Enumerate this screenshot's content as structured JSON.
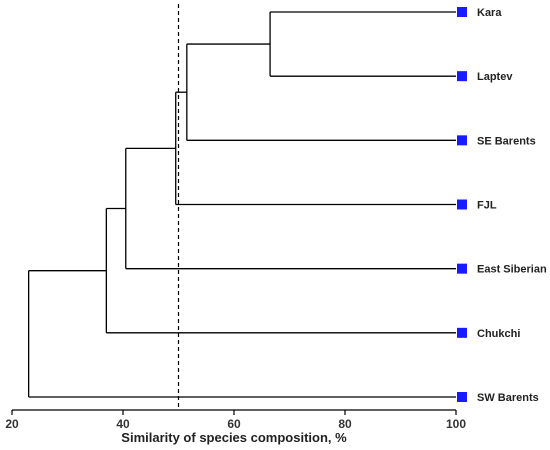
{
  "chart_data": {
    "type": "dendrogram",
    "xlabel": "Similarity of species composition, %",
    "xlim": [
      20,
      100
    ],
    "x_ticks": [
      20,
      40,
      60,
      80,
      100
    ],
    "threshold_line": 50,
    "leaves": [
      "Kara",
      "Laptev",
      "SE Barents",
      "FJL",
      "East Siberian",
      "Chukchi",
      "SW Barents"
    ],
    "merges": [
      {
        "left": "Kara",
        "right": "Laptev",
        "similarity": 66.5
      },
      {
        "left": "Kara+Laptev",
        "right": "SE Barents",
        "similarity": 51.5
      },
      {
        "left": "Kara+Laptev+SE Barents",
        "right": "FJL",
        "similarity": 49.5
      },
      {
        "left": "Kara+Laptev+SE Barents+FJL",
        "right": "East Siberian",
        "similarity": 40.5
      },
      {
        "left": "Kara+Laptev+SE Barents+FJL+East Siberian",
        "right": "Chukchi",
        "similarity": 37
      },
      {
        "left": "Kara+Laptev+SE Barents+FJL+East Siberian+Chukchi",
        "right": "SW Barents",
        "similarity": 23
      }
    ],
    "marker_color": "#1a1aff",
    "line_color": "#000000"
  }
}
